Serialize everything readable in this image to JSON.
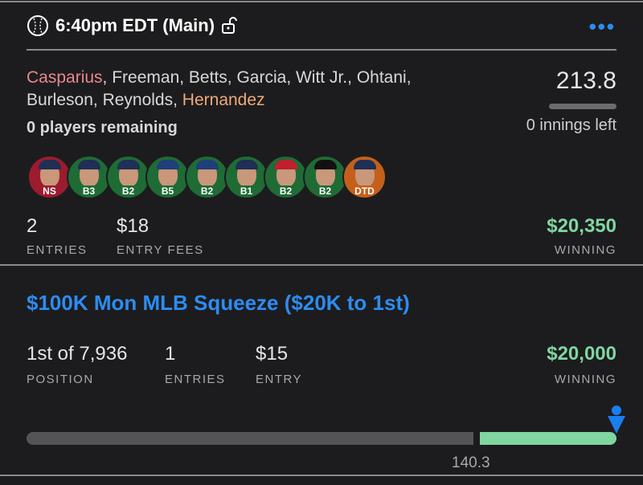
{
  "header": {
    "title": "6:40pm EDT (Main)",
    "sport_icon": "baseball-icon",
    "lock_icon": "unlocked-icon",
    "menu_icon": "more-dots-icon"
  },
  "lineup": {
    "players": [
      {
        "name": "Casparius",
        "status": "NS",
        "color": "#9c1b2e",
        "highlight": "#e8868e"
      },
      {
        "name": "Freeman",
        "status": "B3",
        "color": "#1f6b35"
      },
      {
        "name": "Betts",
        "status": "B2",
        "color": "#1f6b35"
      },
      {
        "name": "Garcia",
        "status": "B5",
        "color": "#1f6b35"
      },
      {
        "name": "Witt Jr.",
        "status": "B2",
        "color": "#1f6b35"
      },
      {
        "name": "Ohtani",
        "status": "B1",
        "color": "#1f6b35"
      },
      {
        "name": "Burleson",
        "status": "B2",
        "color": "#1f6b35"
      },
      {
        "name": "Reynolds",
        "status": "B2",
        "color": "#1f6b35"
      },
      {
        "name": "Hernandez",
        "status": "DTD",
        "color": "#c4601a",
        "highlight": "#f0a878"
      }
    ],
    "remaining": "0 players remaining",
    "score": "213.8",
    "innings_left": "0 innings left"
  },
  "summary": {
    "entries": "2",
    "entries_label": "ENTRIES",
    "fees": "$18",
    "fees_label": "ENTRY FEES",
    "winning": "$20,350",
    "winning_label": "WINNING"
  },
  "contest": {
    "title": "$100K Mon MLB Squeeze ($20K to 1st)",
    "position": "1st of 7,936",
    "position_label": "POSITION",
    "entries": "1",
    "entries_label": "ENTRIES",
    "entry": "$15",
    "entry_label": "ENTRY",
    "winning": "$20,000",
    "winning_label": "WINNING",
    "cutline": "140.3",
    "user_marker_icon": "user-position-icon"
  }
}
